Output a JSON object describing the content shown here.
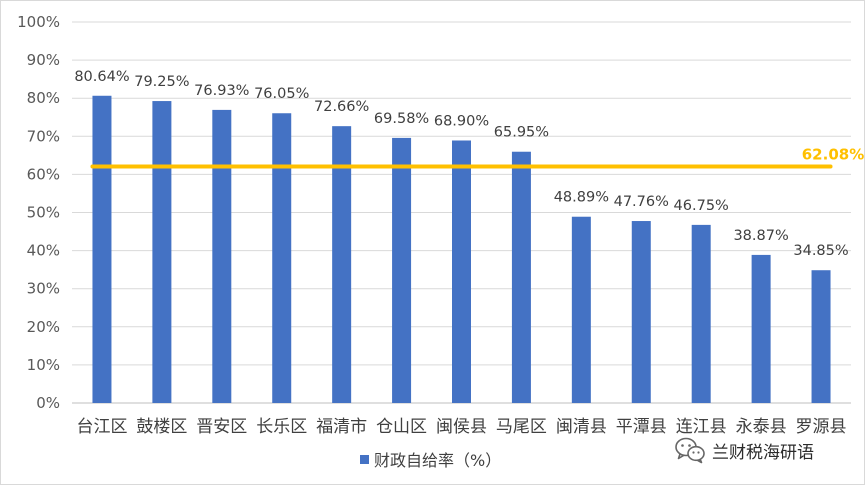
{
  "chart_data": {
    "type": "bar",
    "categories": [
      "台江区",
      "鼓楼区",
      "晋安区",
      "长乐区",
      "福清市",
      "仓山区",
      "闽侯县",
      "马尾区",
      "闽清县",
      "平潭县",
      "连江县",
      "永泰县",
      "罗源县"
    ],
    "series": [
      {
        "name": "财政自给率（%）",
        "values": [
          80.64,
          79.25,
          76.93,
          76.05,
          72.66,
          69.58,
          68.9,
          65.95,
          48.89,
          47.76,
          46.75,
          38.87,
          34.85
        ],
        "labels": [
          "80.64%",
          "79.25%",
          "76.93%",
          "76.05%",
          "72.66%",
          "69.58%",
          "68.90%",
          "65.95%",
          "48.89%",
          "47.76%",
          "46.75%",
          "38.87%",
          "34.85%"
        ],
        "color": "#4472c4"
      }
    ],
    "reference_line": {
      "value": 62.08,
      "label": "62.08%",
      "color": "#ffc000"
    },
    "ylim": [
      0,
      100
    ],
    "yticks": [
      "0%",
      "10%",
      "20%",
      "30%",
      "40%",
      "50%",
      "60%",
      "70%",
      "80%",
      "90%",
      "100%"
    ],
    "grid": true,
    "legend_position": "bottom",
    "title": "",
    "xlabel": "",
    "ylabel": ""
  },
  "legend": {
    "label": "财政自给率（%）",
    "color": "#4472c4"
  },
  "watermark": {
    "text": "兰财税海研语",
    "icon": "wechat-icon"
  }
}
